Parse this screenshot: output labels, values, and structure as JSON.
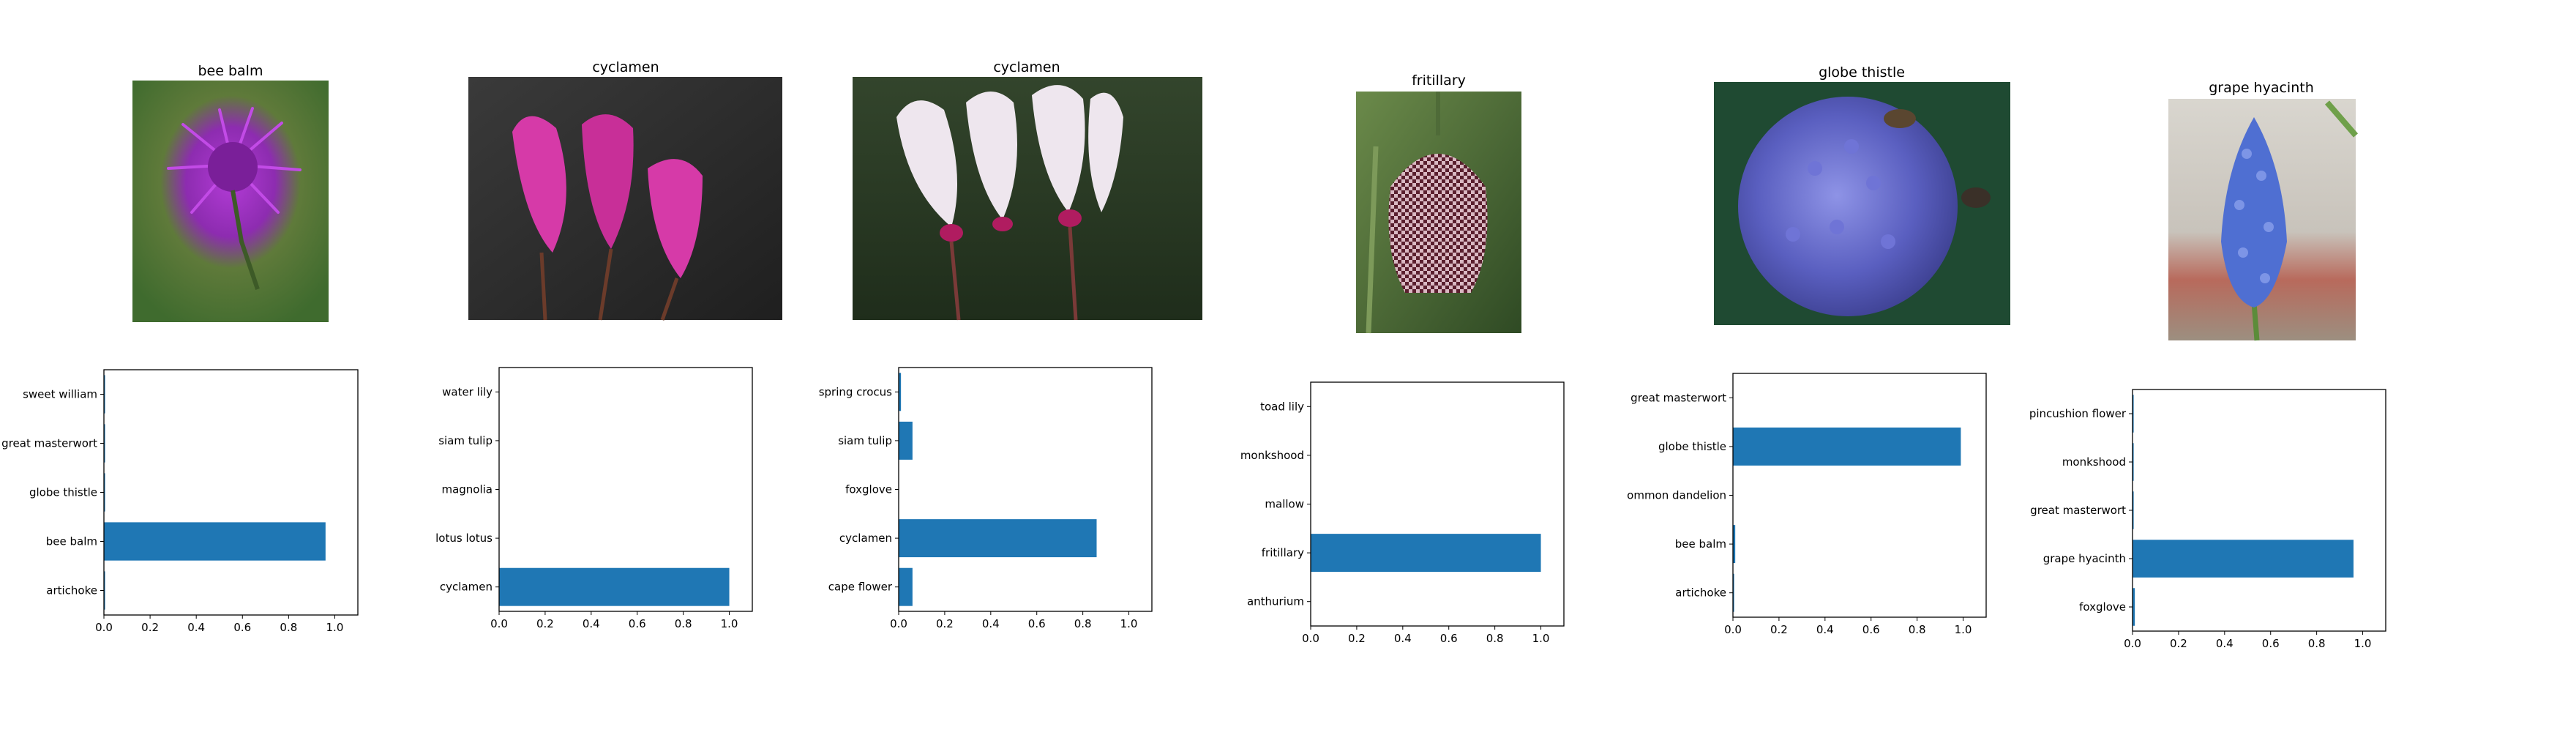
{
  "colors": {
    "bar": "#1f77b4",
    "axis": "#000000",
    "background": "#ffffff"
  },
  "chart_data": [
    {
      "type": "bar",
      "orientation": "horizontal",
      "title": "bee balm",
      "image": {
        "subject": "bee balm"
      },
      "categories": [
        "artichoke",
        "bee balm",
        "globe thistle",
        "great masterwort",
        "sweet william"
      ],
      "values": [
        0.005,
        0.96,
        0.005,
        0.005,
        0.005
      ],
      "xticks": [
        "0.0",
        "0.2",
        "0.4",
        "0.6",
        "0.8",
        "1.0"
      ],
      "xlim": [
        0,
        1.1
      ],
      "grid": false
    },
    {
      "type": "bar",
      "orientation": "horizontal",
      "title": "cyclamen",
      "image": {
        "subject": "cyclamen"
      },
      "categories": [
        "cyclamen",
        "lotus lotus",
        "magnolia",
        "siam tulip",
        "water lily"
      ],
      "values": [
        1.0,
        0.0,
        0.0,
        0.0,
        0.0
      ],
      "xticks": [
        "0.0",
        "0.2",
        "0.4",
        "0.6",
        "0.8",
        "1.0"
      ],
      "xlim": [
        0,
        1.1
      ],
      "grid": false
    },
    {
      "type": "bar",
      "orientation": "horizontal",
      "title": "cyclamen",
      "image": {
        "subject": "cyclamen"
      },
      "categories": [
        "cape flower",
        "cyclamen",
        "foxglove",
        "siam tulip",
        "spring crocus"
      ],
      "values": [
        0.06,
        0.86,
        0.0,
        0.06,
        0.01
      ],
      "xticks": [
        "0.0",
        "0.2",
        "0.4",
        "0.6",
        "0.8",
        "1.0"
      ],
      "xlim": [
        0,
        1.1
      ],
      "grid": false
    },
    {
      "type": "bar",
      "orientation": "horizontal",
      "title": "fritillary",
      "image": {
        "subject": "fritillary"
      },
      "categories": [
        "anthurium",
        "fritillary",
        "mallow",
        "monkshood",
        "toad lily"
      ],
      "values": [
        0.0,
        1.0,
        0.0,
        0.0,
        0.0
      ],
      "xticks": [
        "0.0",
        "0.2",
        "0.4",
        "0.6",
        "0.8",
        "1.0"
      ],
      "xlim": [
        0,
        1.1
      ],
      "grid": false
    },
    {
      "type": "bar",
      "orientation": "horizontal",
      "title": "globe thistle",
      "image": {
        "subject": "globe thistle"
      },
      "categories": [
        "artichoke",
        "bee balm",
        "ommon dandelion",
        "globe thistle",
        "great masterwort"
      ],
      "values": [
        0.005,
        0.01,
        0.0,
        0.99,
        0.0
      ],
      "xticks": [
        "0.0",
        "0.2",
        "0.4",
        "0.6",
        "0.8",
        "1.0"
      ],
      "xlim": [
        0,
        1.1
      ],
      "grid": false
    },
    {
      "type": "bar",
      "orientation": "horizontal",
      "title": "grape hyacinth",
      "image": {
        "subject": "grape hyacinth"
      },
      "categories": [
        "foxglove",
        "grape hyacinth",
        "great masterwort",
        "monkshood",
        "pincushion flower"
      ],
      "values": [
        0.01,
        0.96,
        0.005,
        0.005,
        0.005
      ],
      "xticks": [
        "0.0",
        "0.2",
        "0.4",
        "0.6",
        "0.8",
        "1.0"
      ],
      "xlim": [
        0,
        1.1
      ],
      "grid": false
    }
  ]
}
